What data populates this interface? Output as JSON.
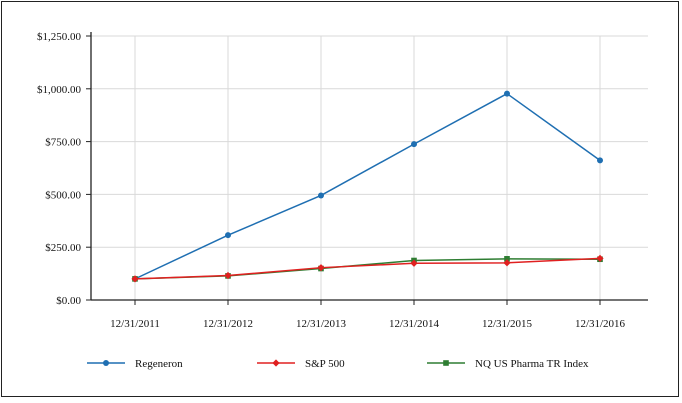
{
  "chart_data": {
    "type": "line",
    "title": "",
    "xlabel": "",
    "ylabel": "",
    "categories": [
      "12/31/2011",
      "12/31/2012",
      "12/31/2013",
      "12/31/2014",
      "12/31/2015",
      "12/31/2016"
    ],
    "ylim": [
      0,
      1250
    ],
    "yticks": [
      0,
      250,
      500,
      750,
      1000,
      1250
    ],
    "ytick_labels": [
      "$0.00",
      "$250.00",
      "$500.00",
      "$750.00",
      "$1,000.00",
      "$1,250.00"
    ],
    "grid": true,
    "legend_position": "bottom",
    "series": [
      {
        "name": "Regeneron",
        "color": "#1f6fb2",
        "marker": "circle",
        "values": [
          100,
          307,
          495,
          738,
          977,
          661
        ]
      },
      {
        "name": "S&P 500",
        "color": "#e02020",
        "marker": "diamond",
        "values": [
          100,
          116,
          153,
          174,
          176,
          197
        ]
      },
      {
        "name": "NQ US Pharma TR Index",
        "color": "#2e7d32",
        "marker": "square",
        "values": [
          100,
          114,
          149,
          187,
          195,
          193
        ]
      }
    ]
  }
}
